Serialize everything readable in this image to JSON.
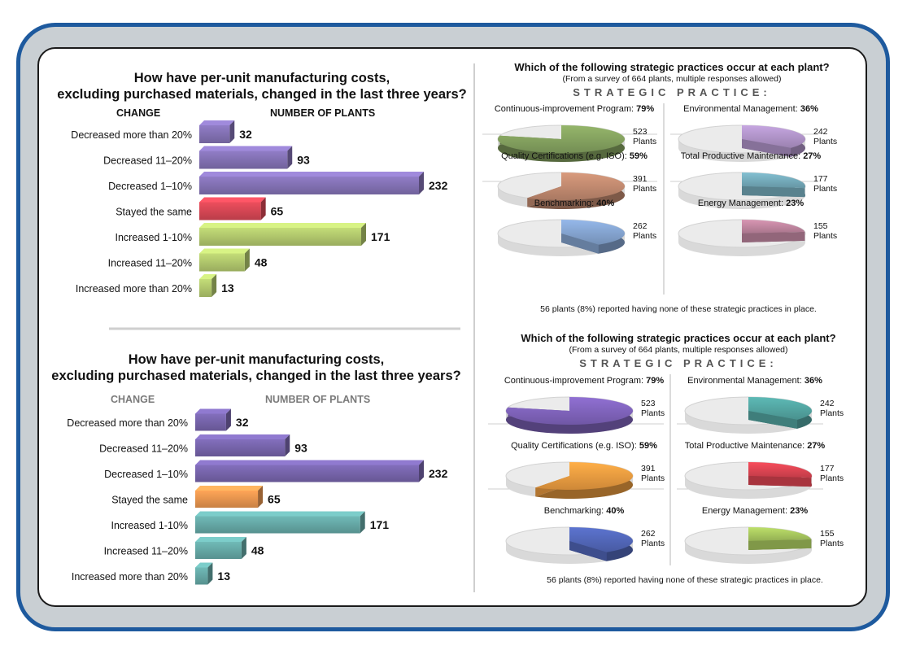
{
  "chart_data": [
    {
      "type": "bar",
      "title_lines": [
        "How have per-unit manufacturing costs,",
        "excluding purchased materials, changed in the last three years?"
      ],
      "xlabel": "NUMBER OF PLANTS",
      "ylabel": "CHANGE",
      "categories": [
        "Decreased more than 20%",
        "Decreased 11–20%",
        "Decreased 1–10%",
        "Stayed the same",
        "Increased 1-10%",
        "Increased 11–20%",
        "Increased more than 20%"
      ],
      "values": [
        32,
        93,
        232,
        65,
        171,
        48,
        13
      ],
      "colors": [
        "#7b6aa9",
        "#7b6aa9",
        "#7b6aa9",
        "#c9424f",
        "#a6bb66",
        "#a6bb66",
        "#a6bb66"
      ],
      "header_color": "#111111"
    },
    {
      "type": "bar",
      "title_lines": [
        "How have per-unit manufacturing costs,",
        "excluding purchased materials, changed in the last three years?"
      ],
      "xlabel": "NUMBER OF PLANTS",
      "ylabel": "CHANGE",
      "categories": [
        "Decreased more than 20%",
        "Decreased 11–20%",
        "Decreased 1–10%",
        "Stayed the same",
        "Increased 1-10%",
        "Increased 11–20%",
        "Increased more than 20%"
      ],
      "values": [
        32,
        93,
        232,
        65,
        171,
        48,
        13
      ],
      "colors": [
        "#6f5ea0",
        "#6f5ea0",
        "#6f5ea0",
        "#d98c4a",
        "#5f9e9b",
        "#5f9e9b",
        "#5f9e9b"
      ],
      "header_color": "#7a7a7a"
    },
    {
      "type": "pie",
      "title": "Which of the following strategic practices occur at each plant?",
      "subtitle": "(From a survey of 664 plants, multiple responses allowed)",
      "section_label": "STRATEGIC PRACTICE:",
      "unit": "Plants",
      "items": [
        {
          "name": "Continuous-improvement Program:",
          "percent": 79,
          "percent_label": "79%",
          "count": "523",
          "color": "#7e9a5b"
        },
        {
          "name": "Environmental Management:",
          "percent": 36,
          "percent_label": "36%",
          "count": "242",
          "color": "#a88dbf"
        },
        {
          "name": "Quality Certifications (e.g. ISO):",
          "percent": 59,
          "percent_label": "59%",
          "count": "391",
          "color": "#b8836a"
        },
        {
          "name": "Total Productive Maintenance:",
          "percent": 27,
          "percent_label": "27%",
          "count": "177",
          "color": "#6fa3b2"
        },
        {
          "name": "Benchmarking:",
          "percent": 40,
          "percent_label": "40%",
          "count": "262",
          "color": "#7e9cc6"
        },
        {
          "name": "Energy Management:",
          "percent": 23,
          "percent_label": "23%",
          "count": "155",
          "color": "#b77f98"
        }
      ],
      "footnote": "56 plants (8%) reported having none of these strategic practices in place."
    },
    {
      "type": "pie",
      "title": "Which of the following strategic practices occur at each plant?",
      "subtitle": "(From a survey of 664 plants, multiple responses allowed)",
      "section_label": "STRATEGIC PRACTICE:",
      "unit": "Plants",
      "items": [
        {
          "name": "Continuous-improvement Program:",
          "percent": 79,
          "percent_label": "79%",
          "count": "523",
          "color": "#7a5fb3"
        },
        {
          "name": "Environmental Management:",
          "percent": 36,
          "percent_label": "36%",
          "count": "242",
          "color": "#4f9e9a"
        },
        {
          "name": "Quality Certifications (e.g. ISO):",
          "percent": 59,
          "percent_label": "59%",
          "count": "391",
          "color": "#e0943d"
        },
        {
          "name": "Total Productive Maintenance:",
          "percent": 27,
          "percent_label": "27%",
          "count": "177",
          "color": "#d2414e"
        },
        {
          "name": "Benchmarking:",
          "percent": 40,
          "percent_label": "40%",
          "count": "262",
          "color": "#4e62b0"
        },
        {
          "name": "Energy Management:",
          "percent": 23,
          "percent_label": "23%",
          "count": "155",
          "color": "#a0be5a"
        }
      ],
      "footnote": "56 plants (8%) reported having none of these strategic practices in place."
    }
  ]
}
